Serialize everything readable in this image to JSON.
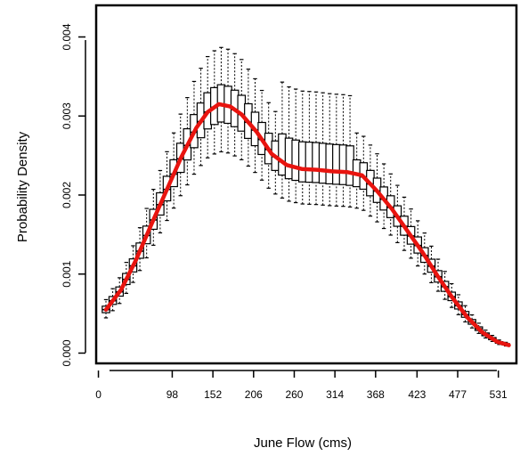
{
  "chart_data": {
    "type": "box-density",
    "title": "",
    "xlabel": "June Flow (cms)",
    "ylabel": "Probability Density",
    "xlim": [
      -3,
      555
    ],
    "ylim": [
      -0.00013,
      0.0044
    ],
    "x_ticks": [
      0,
      98,
      152,
      206,
      260,
      314,
      368,
      423,
      477,
      531
    ],
    "y_ticks": [
      0.0,
      0.001,
      0.002,
      0.003,
      0.004
    ],
    "y_tick_labels": [
      "0.000",
      "0.001",
      "0.002",
      "0.003",
      "0.004"
    ],
    "colors": {
      "median_line": "#e8140f",
      "boxes": "#000000"
    },
    "median_line": {
      "x": [
        10,
        30,
        50,
        70,
        90,
        110,
        130,
        145,
        160,
        175,
        190,
        210,
        230,
        250,
        270,
        290,
        310,
        330,
        350,
        370,
        390,
        410,
        430,
        450,
        470,
        490,
        510,
        530,
        545
      ],
      "y": [
        0.00055,
        0.0008,
        0.00118,
        0.00162,
        0.00205,
        0.00248,
        0.00285,
        0.00305,
        0.00315,
        0.00312,
        0.00302,
        0.0028,
        0.00252,
        0.00238,
        0.00233,
        0.00232,
        0.0023,
        0.00229,
        0.00225,
        0.00205,
        0.00182,
        0.00155,
        0.00128,
        0.00098,
        0.0007,
        0.00045,
        0.00026,
        0.00014,
        0.0001
      ]
    },
    "boxes": {
      "x": [
        10,
        19,
        28,
        37,
        46,
        55,
        64,
        73,
        82,
        91,
        100,
        109,
        118,
        127,
        136,
        145,
        154,
        163,
        172,
        181,
        190,
        199,
        208,
        217,
        226,
        235,
        244,
        253,
        262,
        271,
        280,
        289,
        298,
        307,
        316,
        325,
        334,
        343,
        352,
        361,
        370,
        379,
        388,
        397,
        406,
        415,
        424,
        433,
        442,
        451,
        460,
        469,
        478,
        487,
        496,
        505,
        514,
        523,
        532,
        541
      ],
      "spread_fraction": {
        "whisker_low": -0.19,
        "box_low": -0.07,
        "box_high": 0.08,
        "whisker_high": 0.23
      },
      "extra_spread_region": {
        "x_from": 240,
        "x_to": 340,
        "extra_upper": 0.00045
      }
    }
  }
}
